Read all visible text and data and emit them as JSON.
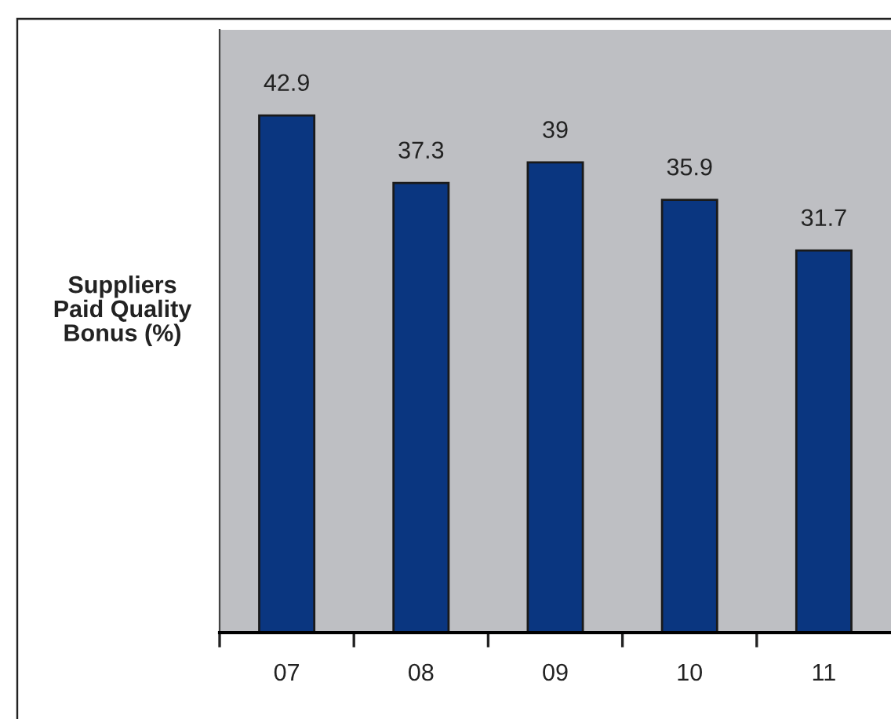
{
  "chart_data": {
    "type": "bar",
    "ylabel": "Suppliers\nPaid Quality\nBonus (%)",
    "categories": [
      "07",
      "08",
      "09",
      "10",
      "11"
    ],
    "values": [
      42.9,
      37.3,
      39,
      35.9,
      31.7
    ],
    "color": "#0a3680",
    "ylim": [
      0,
      50
    ],
    "tick_labels": "x",
    "data_labels": true,
    "grid": false,
    "legend": false
  }
}
